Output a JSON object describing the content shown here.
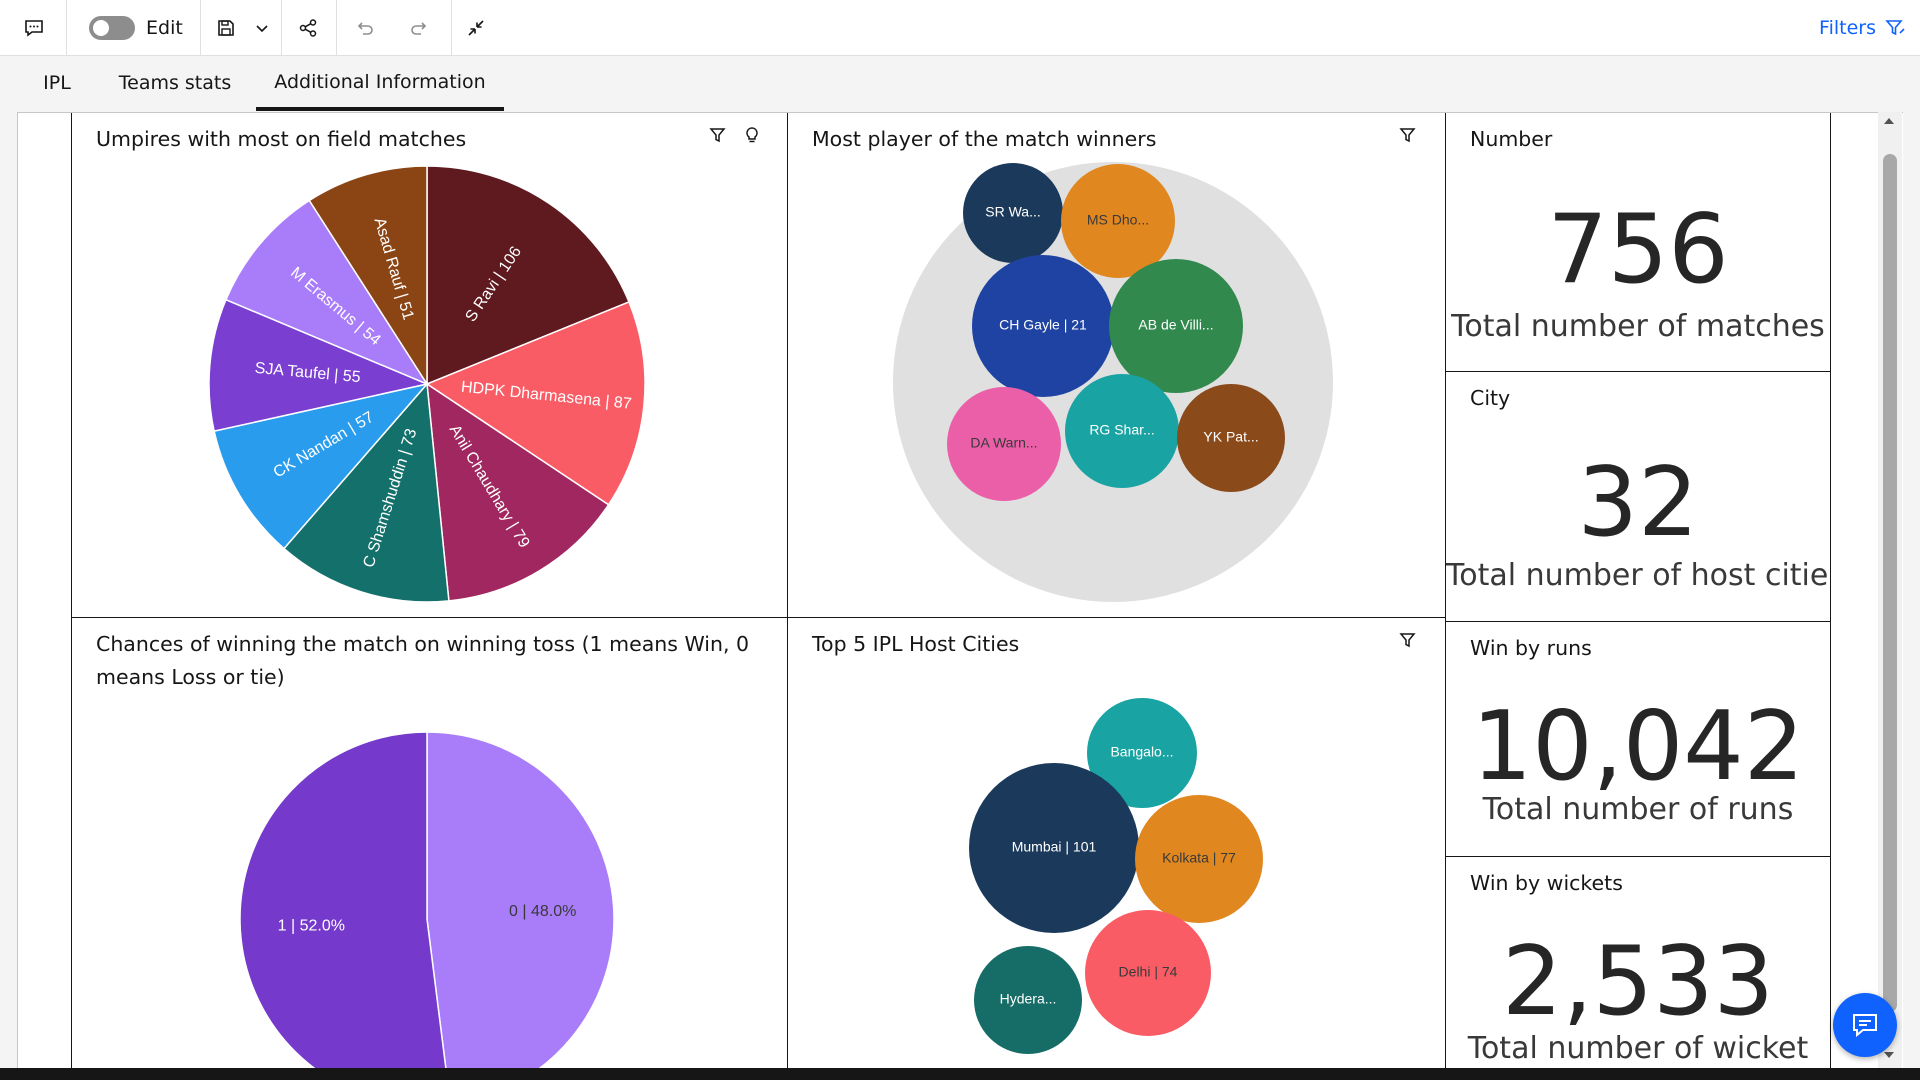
{
  "toolbar": {
    "comment_icon": "comment-icon",
    "edit_label": "Edit",
    "save_icon": "save-icon",
    "share_icon": "share-icon",
    "undo_icon": "undo-icon",
    "redo_icon": "redo-icon",
    "collapse_icon": "collapse-icon",
    "filters_label": "Filters"
  },
  "tabs": [
    {
      "label": "IPL"
    },
    {
      "label": "Teams stats"
    },
    {
      "label": "Additional Information",
      "active": true
    }
  ],
  "panels": {
    "umpires_title": "Umpires with most on field matches",
    "potm_title": "Most player of the match winners",
    "toss_title_line1": "Chances of winning the match on winning toss (1 means Win, 0",
    "toss_title_line2": "means Loss or tie)",
    "cities_title": "Top 5 IPL Host Cities"
  },
  "kpis": [
    {
      "title": "Number",
      "value": "756",
      "label": "Total number of matches"
    },
    {
      "title": "City",
      "value": "32",
      "label": "Total number of host cities"
    },
    {
      "title": "Win by runs",
      "value": "10,042",
      "label": "Total number of runs"
    },
    {
      "title": "Win by wickets",
      "value": "2,533",
      "label": "Total number of wicket"
    }
  ],
  "colors": {
    "accent": "#0f62fe",
    "bubble_bg": "#e0e0e0"
  },
  "chart_data": [
    {
      "type": "pie",
      "title": "Umpires with most on field matches",
      "slices": [
        {
          "label": "S Ravi | 106",
          "value": 106,
          "color": "#5e1a1f"
        },
        {
          "label": "HDPK Dharmasena | 87",
          "value": 87,
          "color": "#fa5c66"
        },
        {
          "label": "Anil Chaudhary | 79",
          "value": 79,
          "color": "#a0275f"
        },
        {
          "label": "C Shamshuddin | 73",
          "value": 73,
          "color": "#14706b"
        },
        {
          "label": "CK Nandan | 57",
          "value": 57,
          "color": "#2a9ced"
        },
        {
          "label": "SJA Taufel | 55",
          "value": 55,
          "color": "#7a3ed0"
        },
        {
          "label": "M Erasmus | 54",
          "value": 54,
          "color": "#a97cf9"
        },
        {
          "label": "Asad Rauf | 51",
          "value": 51,
          "color": "#8b4414"
        }
      ]
    },
    {
      "type": "bubble",
      "title": "Most player of the match winners",
      "bubbles": [
        {
          "label": "SR Wa...",
          "color": "#1b3a5b"
        },
        {
          "label": "MS Dho...",
          "color": "#e0871f",
          "text_color": "#3a3a3a"
        },
        {
          "label": "CH Gayle | 21",
          "value": 21,
          "color": "#1e43a3"
        },
        {
          "label": "AB de Villi...",
          "color": "#31894e"
        },
        {
          "label": "DA Warn...",
          "color": "#ea5fa8",
          "text_color": "#3a3a3a"
        },
        {
          "label": "RG Shar...",
          "color": "#1aa3a3"
        },
        {
          "label": "YK Pat...",
          "color": "#8a4a1a"
        }
      ]
    },
    {
      "type": "pie",
      "title": "Chances of winning the match on winning toss (1 means Win, 0 means Loss or tie)",
      "slices": [
        {
          "label": "0 | 48.0%",
          "value": 48.0,
          "color": "#a97cf9",
          "text_color": "#393939"
        },
        {
          "label": "1 | 52.0%",
          "value": 52.0,
          "color": "#7539cc",
          "text_color": "#ffffff"
        }
      ]
    },
    {
      "type": "bubble",
      "title": "Top 5 IPL Host Cities",
      "bubbles": [
        {
          "label": "Bangalo...",
          "color": "#1aa3a3"
        },
        {
          "label": "Mumbai | 101",
          "value": 101,
          "color": "#1b3a5b"
        },
        {
          "label": "Kolkata | 77",
          "value": 77,
          "color": "#e0871f",
          "text_color": "#3a3a3a"
        },
        {
          "label": "Delhi | 74",
          "value": 74,
          "color": "#fa5c66",
          "text_color": "#3a3a3a"
        },
        {
          "label": "Hydera...",
          "color": "#166c66"
        }
      ]
    }
  ]
}
